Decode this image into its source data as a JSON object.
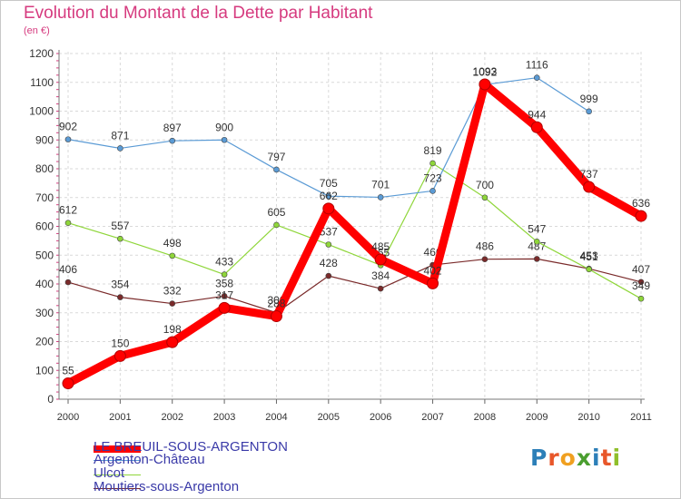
{
  "chart_data": {
    "type": "line",
    "title": "Evolution du Montant de la Dette par Habitant",
    "unit": "(en €)",
    "xlabel": "",
    "ylabel": "",
    "categories": [
      "2000",
      "2001",
      "2002",
      "2003",
      "2004",
      "2005",
      "2006",
      "2007",
      "2008",
      "2009",
      "2010",
      "2011"
    ],
    "ylim": [
      0,
      1200
    ],
    "yticks": [
      0,
      100,
      200,
      300,
      400,
      500,
      600,
      700,
      800,
      900,
      1000,
      1100,
      1200
    ],
    "grid": true,
    "series": [
      {
        "name": "LE BREUIL-SOUS-ARGENTON",
        "color": "#ff0000",
        "values": [
          55,
          150,
          198,
          317,
          288,
          662,
          485,
          402,
          1093,
          944,
          737,
          636
        ]
      },
      {
        "name": "Argenton-Château",
        "color": "#5b9bd5",
        "values": [
          902,
          871,
          897,
          900,
          797,
          705,
          701,
          723,
          1092,
          1116,
          999,
          null
        ]
      },
      {
        "name": "Ulcot",
        "color": "#8fd63a",
        "values": [
          612,
          557,
          498,
          433,
          605,
          537,
          465,
          819,
          700,
          547,
          451,
          349
        ]
      },
      {
        "name": "Moutiers-sous-Argenton",
        "color": "#7a2a2a",
        "values": [
          406,
          354,
          332,
          358,
          300,
          428,
          384,
          466,
          486,
          487,
          453,
          407
        ]
      }
    ]
  },
  "legend": {
    "items": [
      "LE BREUIL-SOUS-ARGENTON",
      "Argenton-Château",
      "Ulcot",
      "Moutiers-sous-Argenton"
    ]
  },
  "logo": {
    "letters": [
      "P",
      "r",
      "o",
      "x",
      "i",
      "t",
      "i"
    ],
    "colors": [
      "#2c7fb8",
      "#e8572a",
      "#f0a020",
      "#4a9e2f",
      "#2c7fb8",
      "#e8572a",
      "#8fbf2a"
    ]
  }
}
